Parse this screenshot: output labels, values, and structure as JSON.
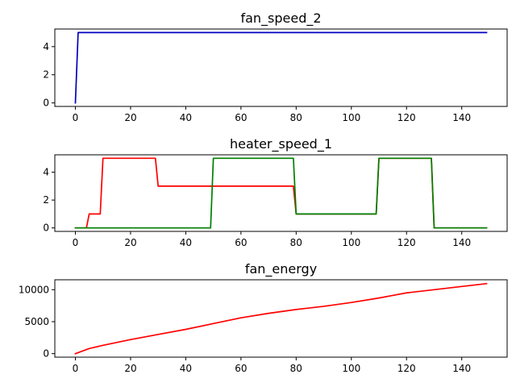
{
  "chart_data": [
    {
      "type": "line",
      "title": "fan_speed_2",
      "xlim": [
        -7.45,
        156.45
      ],
      "ylim": [
        -0.25,
        5.25
      ],
      "xticks": [
        0,
        20,
        40,
        60,
        80,
        100,
        120,
        140
      ],
      "yticks": [
        0,
        2,
        4
      ],
      "series": [
        {
          "color": "#0000bf",
          "x": [
            0,
            1,
            149
          ],
          "y": [
            0,
            5,
            5
          ]
        }
      ]
    },
    {
      "type": "line",
      "title": "heater_speed_1",
      "xlim": [
        -7.45,
        156.45
      ],
      "ylim": [
        -0.25,
        5.25
      ],
      "xticks": [
        0,
        20,
        40,
        60,
        80,
        100,
        120,
        140
      ],
      "yticks": [
        0,
        2,
        4
      ],
      "series": [
        {
          "color": "#ff0000",
          "x": [
            0,
            4,
            5,
            9,
            10,
            29,
            30,
            79,
            80,
            109,
            110,
            129,
            130,
            149
          ],
          "y": [
            0,
            0,
            1,
            1,
            5,
            5,
            3,
            3,
            1,
            1,
            5,
            5,
            0,
            0
          ]
        },
        {
          "color": "#008000",
          "x": [
            0,
            49,
            50,
            79,
            80,
            109,
            110,
            129,
            130,
            149
          ],
          "y": [
            0,
            0,
            5,
            5,
            1,
            1,
            5,
            5,
            0,
            0
          ]
        }
      ]
    },
    {
      "type": "line",
      "title": "fan_energy",
      "xlim": [
        -7.45,
        156.45
      ],
      "ylim": [
        -550,
        11550
      ],
      "xticks": [
        0,
        20,
        40,
        60,
        80,
        100,
        120,
        140
      ],
      "yticks": [
        0,
        5000,
        10000
      ],
      "series": [
        {
          "color": "#ff0000",
          "x": [
            0,
            5,
            10,
            20,
            30,
            40,
            50,
            60,
            70,
            80,
            90,
            100,
            110,
            115,
            120,
            130,
            140,
            149
          ],
          "y": [
            0,
            800,
            1300,
            2200,
            3000,
            3800,
            4700,
            5600,
            6300,
            6900,
            7400,
            8000,
            8700,
            9100,
            9500,
            10000,
            10500,
            10950
          ]
        }
      ]
    }
  ]
}
